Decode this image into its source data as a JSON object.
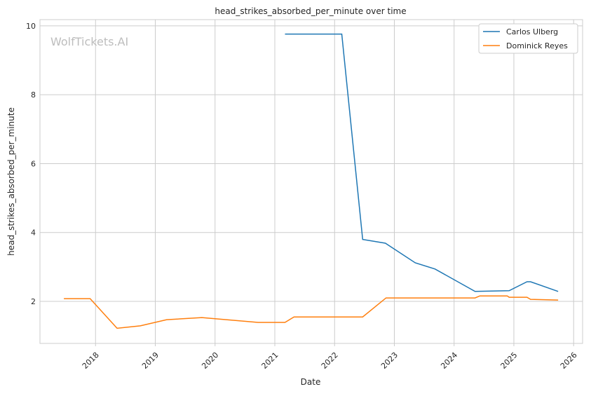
{
  "chart_data": {
    "type": "line",
    "title": "head_strikes_absorbed_per_minute over time",
    "xlabel": "Date",
    "ylabel": "head_strikes_absorbed_per_minute",
    "watermark": "WolfTickets.AI",
    "xlim": [
      2017.07,
      2026.15
    ],
    "ylim": [
      0.78,
      10.18
    ],
    "xticks": [
      2018,
      2019,
      2020,
      2021,
      2022,
      2023,
      2024,
      2025,
      2026
    ],
    "xtick_labels": [
      "2018",
      "2019",
      "2020",
      "2021",
      "2022",
      "2023",
      "2024",
      "2025",
      "2026"
    ],
    "yticks": [
      2,
      4,
      6,
      8,
      10
    ],
    "ytick_labels": [
      "2",
      "4",
      "6",
      "8",
      "10"
    ],
    "grid": true,
    "legend_placement": "top-right",
    "series": [
      {
        "name": "Carlos Ulberg",
        "color": "#1f77b4",
        "x": [
          2021.17,
          2022.12,
          2022.47,
          2022.85,
          2023.35,
          2023.68,
          2024.35,
          2024.92,
          2025.22,
          2025.28,
          2025.74
        ],
        "y": [
          9.76,
          9.76,
          3.8,
          3.69,
          3.12,
          2.94,
          2.29,
          2.31,
          2.57,
          2.57,
          2.29
        ]
      },
      {
        "name": "Dominick Reyes",
        "color": "#ff7f0e",
        "x": [
          2017.47,
          2017.91,
          2018.36,
          2018.75,
          2019.19,
          2019.78,
          2020.72,
          2021.17,
          2021.32,
          2022.47,
          2022.86,
          2024.35,
          2024.43,
          2024.89,
          2024.92,
          2025.22,
          2025.28,
          2025.74
        ],
        "y": [
          2.08,
          2.08,
          1.22,
          1.29,
          1.47,
          1.53,
          1.39,
          1.39,
          1.55,
          1.55,
          2.1,
          2.1,
          2.16,
          2.16,
          2.12,
          2.12,
          2.06,
          2.04
        ]
      }
    ]
  }
}
